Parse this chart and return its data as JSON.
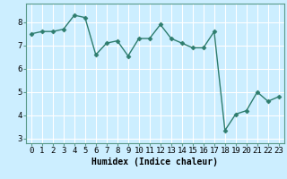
{
  "x": [
    0,
    1,
    2,
    3,
    4,
    5,
    6,
    7,
    8,
    9,
    10,
    11,
    12,
    13,
    14,
    15,
    16,
    17,
    18,
    19,
    20,
    21,
    22,
    23
  ],
  "y": [
    7.5,
    7.6,
    7.6,
    7.7,
    8.3,
    8.2,
    6.6,
    7.1,
    7.2,
    6.55,
    7.3,
    7.3,
    7.9,
    7.3,
    7.1,
    6.9,
    6.9,
    7.6,
    3.35,
    4.05,
    4.2,
    5.0,
    4.6,
    4.8
  ],
  "line_color": "#2e7d6e",
  "marker": "D",
  "markersize": 2.5,
  "linewidth": 1.0,
  "xlabel": "Humidex (Indice chaleur)",
  "xlim": [
    -0.5,
    23.5
  ],
  "ylim": [
    2.8,
    8.8
  ],
  "yticks": [
    3,
    4,
    5,
    6,
    7,
    8
  ],
  "xticks": [
    0,
    1,
    2,
    3,
    4,
    5,
    6,
    7,
    8,
    9,
    10,
    11,
    12,
    13,
    14,
    15,
    16,
    17,
    18,
    19,
    20,
    21,
    22,
    23
  ],
  "bg_color": "#cceeff",
  "grid_color": "#ffffff",
  "axis_color": "#5a9a8a",
  "xlabel_fontsize": 7,
  "tick_fontsize": 6.5
}
